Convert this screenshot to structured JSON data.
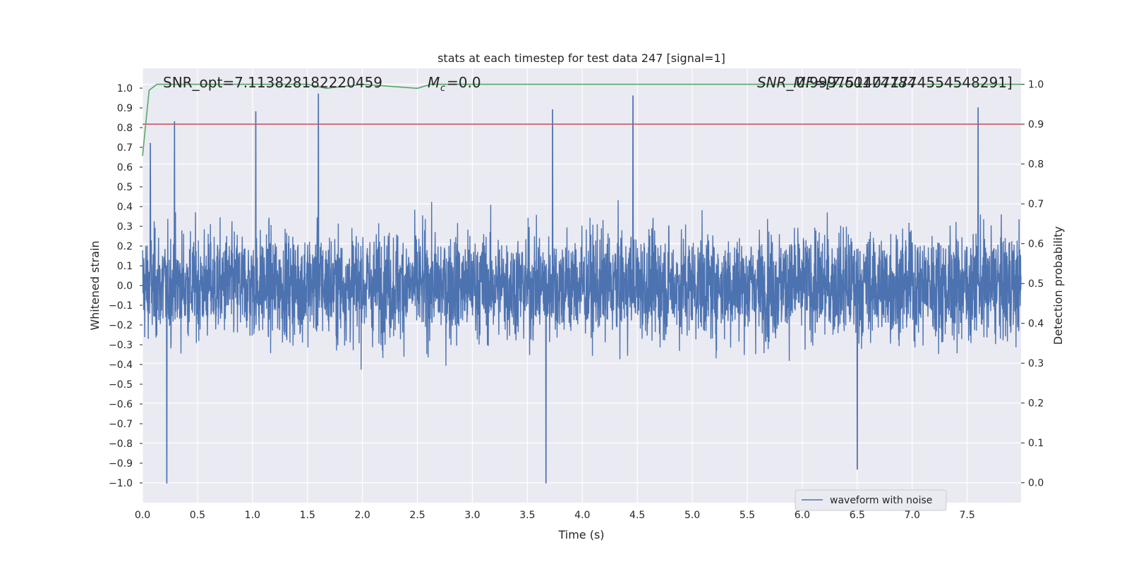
{
  "chart_data": {
    "type": "line",
    "title": "stats at each timestep for test data 247 [signal=1]",
    "xlabel": "Time (s)",
    "ylabel": "Whitened strain",
    "ylabel_right": "Detection probability",
    "xlim": [
      0.0,
      7.99
    ],
    "ylim": [
      -1.1,
      1.1
    ],
    "ylim_right": [
      -0.05,
      1.04
    ],
    "xticks": [
      "0.0",
      "0.5",
      "1.0",
      "1.5",
      "2.0",
      "2.5",
      "3.0",
      "3.5",
      "4.0",
      "4.5",
      "5.0",
      "5.5",
      "6.0",
      "6.5",
      "7.0",
      "7.5"
    ],
    "yticks": [
      "1.0",
      "0.9",
      "0.8",
      "0.7",
      "0.6",
      "0.5",
      "0.4",
      "0.3",
      "0.2",
      "0.1",
      "0.0",
      "−0.1",
      "−0.2",
      "−0.3",
      "−0.4",
      "−0.5",
      "−0.6",
      "−0.7",
      "−0.8",
      "−0.9",
      "−1.0"
    ],
    "yticks_right": [
      "1.0",
      "0.9",
      "0.8",
      "0.7",
      "0.6",
      "0.5",
      "0.4",
      "0.3",
      "0.2",
      "0.1",
      "0.0"
    ],
    "grid": true,
    "legend_position": "lower right",
    "annotations": {
      "snr_opt": "SNR_opt=7.113828182220459",
      "mc_symbol": "M",
      "mc_sub": "c",
      "mc_value": "=0.0",
      "right_overlap_a": "SNR_MF=[7.60174784",
      "right_overlap_b": "0.9997514071774554548291]"
    },
    "series": [
      {
        "name": "waveform with noise",
        "color": "#4c72b0",
        "axis": "left",
        "description_peaks": [
          {
            "x": 0.07,
            "y": 0.72
          },
          {
            "x": 0.22,
            "y": -1.0
          },
          {
            "x": 0.29,
            "y": 0.83
          },
          {
            "x": 1.03,
            "y": 0.88
          },
          {
            "x": 1.6,
            "y": 0.97
          },
          {
            "x": 3.67,
            "y": -1.0
          },
          {
            "x": 3.73,
            "y": 0.89
          },
          {
            "x": 4.46,
            "y": 0.96
          },
          {
            "x": 6.5,
            "y": -0.93
          },
          {
            "x": 7.6,
            "y": 0.9
          }
        ]
      },
      {
        "name": "",
        "color": "#55a868",
        "axis": "right",
        "x": [
          0.0,
          0.06,
          0.13,
          0.5,
          1.0,
          1.5,
          1.67,
          2.0,
          2.5,
          2.62,
          3.0,
          4.0,
          5.0,
          6.0,
          7.0,
          7.99
        ],
        "values": [
          0.82,
          0.985,
          1.0,
          1.0,
          1.0,
          1.0,
          0.99,
          1.0,
          0.99,
          1.0,
          1.0,
          1.0,
          1.0,
          1.0,
          1.0,
          1.0
        ]
      },
      {
        "name": "",
        "color": "#c44e52",
        "axis": "right",
        "x": [
          0.0,
          7.99
        ],
        "values": [
          0.9,
          0.9
        ]
      }
    ],
    "legend": [
      "waveform with noise"
    ]
  }
}
